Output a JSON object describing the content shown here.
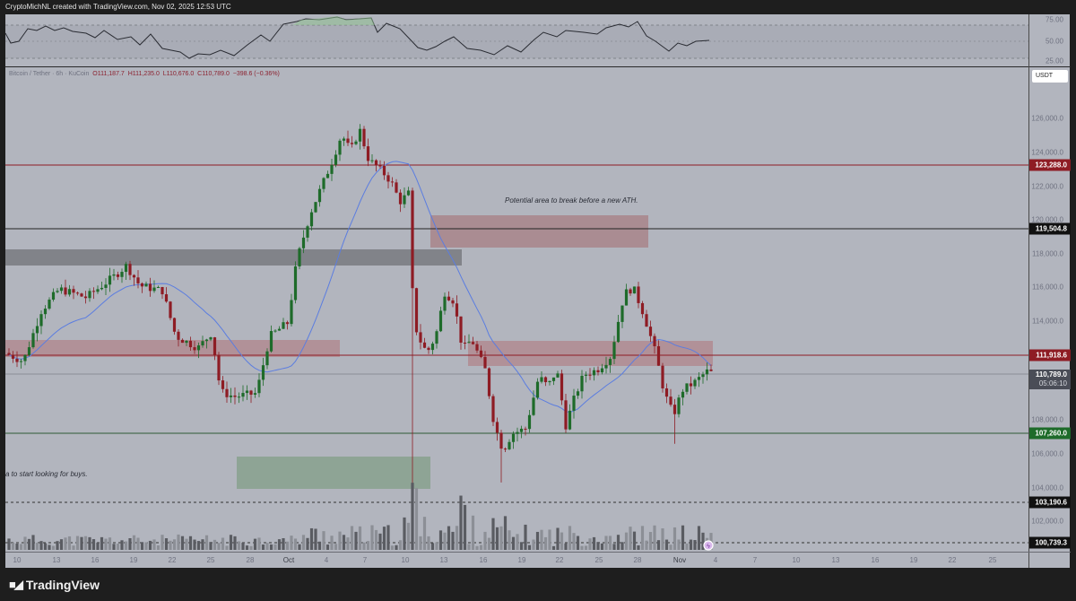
{
  "header": {
    "attribution": "CryptoMichNL created with TradingView.com, Nov 02, 2025 12:53 UTC"
  },
  "legend": {
    "symbol": "Bitcoin / Tether · 6h · KuCoin",
    "open": "O111,187.7",
    "high": "H111,235.0",
    "low": "L110,676.0",
    "close": "C110,789.0",
    "change": "−398.6 (−0.36%)"
  },
  "rsi_axis": {
    "ticks": [
      "75.00",
      "50.00",
      "25.00"
    ]
  },
  "price_axis": {
    "currency": "USDT",
    "ticks": [
      "126,000.0",
      "124,000.0",
      "122,000.0",
      "120,000.0",
      "118,000.0",
      "116,000.0",
      "114,000.0",
      "108,000.0",
      "106,000.0",
      "104,000.0",
      "102,000.0"
    ],
    "labels": [
      {
        "value": "123,288.0",
        "color": "#8e1c24"
      },
      {
        "value": "119,504.8",
        "color": "#111111"
      },
      {
        "value": "111,918.6",
        "color": "#8e1c24"
      },
      {
        "value": "110,789.0",
        "color": "#4a4d57",
        "countdown": "05:06:10"
      },
      {
        "value": "107,260.0",
        "color": "#1e6b2a"
      },
      {
        "value": "103,190.6",
        "color": "#111111"
      },
      {
        "value": "100,739.3",
        "color": "#111111"
      }
    ]
  },
  "time_axis": {
    "ticks": [
      "10",
      "13",
      "16",
      "19",
      "22",
      "25",
      "28",
      "Oct",
      "4",
      "7",
      "10",
      "13",
      "16",
      "19",
      "22",
      "25",
      "28",
      "Nov",
      "4",
      "7",
      "10",
      "13",
      "16",
      "19",
      "22",
      "25"
    ]
  },
  "annotations": {
    "resistance_note": "Potential area to break before a new ATH.",
    "support_note": "a to start looking for buys."
  },
  "footer": {
    "brand": "TradingView",
    "logo": "TV"
  },
  "colors": {
    "bull": "#1e6b2a",
    "bear": "#8e1c24",
    "ma": "#5b7de0",
    "background": "#b2b5be"
  },
  "chart_data": {
    "type": "candlestick",
    "title": "Bitcoin / Tether · 6h · KuCoin",
    "symbol": "BTCUSDT",
    "timeframe": "6h",
    "exchange": "KuCoin",
    "ohlc_last": {
      "open": 111187.7,
      "high": 111235.0,
      "low": 110676.0,
      "close": 110789.0,
      "change": -398.6,
      "change_pct": -0.36
    },
    "ylim": [
      100000,
      128000
    ],
    "x_ticks": [
      "10",
      "13",
      "16",
      "19",
      "22",
      "25",
      "28",
      "Oct",
      "4",
      "7",
      "10",
      "13",
      "16",
      "19",
      "22",
      "25",
      "28",
      "Nov",
      "4",
      "7",
      "10",
      "13",
      "16",
      "19",
      "22",
      "25"
    ],
    "approx_closes_by_date": {
      "Sep 10": 112000,
      "Sep 13": 115500,
      "Sep 16": 115200,
      "Sep 19": 117000,
      "Sep 22": 113000,
      "Sep 25": 109500,
      "Sep 28": 109800,
      "Oct 1": 116000,
      "Oct 4": 122000,
      "Oct 6": 125000,
      "Oct 7": 124500,
      "Oct 9": 121500,
      "Oct 10": 113000,
      "Oct 12": 115000,
      "Oct 14": 112500,
      "Oct 17": 106500,
      "Oct 19": 107800,
      "Oct 21": 111000,
      "Oct 23": 109500,
      "Oct 25": 111500,
      "Oct 27": 115500,
      "Oct 29": 112000,
      "Oct 31": 109500,
      "Nov 2": 110789
    },
    "horizontal_levels": [
      123288.0,
      119504.8,
      111918.6,
      107260.0,
      103190.6,
      100739.3
    ],
    "zones": [
      {
        "type": "resistance",
        "from": 118300,
        "to": 120300,
        "color": "#a8878d",
        "label": "Potential area to break before a new ATH."
      },
      {
        "type": "supply/resistance",
        "from": 111200,
        "to": 112800,
        "color": "#b08b92"
      },
      {
        "type": "grey-zone",
        "from": 117800,
        "to": 118300,
        "color": "#7a7c82"
      },
      {
        "type": "support",
        "from": 104000,
        "to": 106000,
        "color": "#8ea495",
        "label": "a to start looking for buys."
      }
    ],
    "indicators": {
      "moving_average": "blue line",
      "rsi": {
        "ticks": [
          75,
          50,
          25
        ],
        "range": [
          25,
          75
        ],
        "last": 50
      }
    },
    "volume": "histogram at bottom"
  }
}
